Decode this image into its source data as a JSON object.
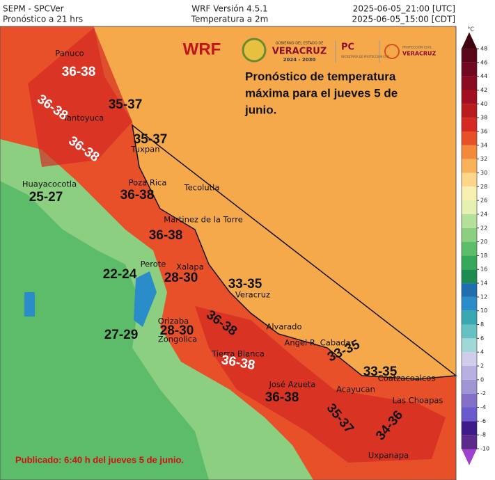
{
  "header": {
    "left": [
      "SEPM - SPCVer",
      "Pronóstico a 21 hrs"
    ],
    "center": [
      "WRF Versión 4.5.1",
      "Temperatura a 2m"
    ],
    "right": [
      "2025-06-05_21:00 [UTC]",
      "2025-06-05_15:00 [CDT]"
    ]
  },
  "model_label": "WRF",
  "logos": {
    "gov_small": "GOBIERNO DEL ESTADO DE",
    "gov_state": "VERACRUZ",
    "gov_years": "2024 - 2030",
    "pc": "PC",
    "pc_small": "SECRETARÍA DE PROTECCIÓN CIVIL",
    "pc2_small": "PROTECCIÓN CIVIL",
    "pc2_state": "VERACRUZ"
  },
  "forecast_text": [
    "Pronóstico de temperatura",
    "máxima para el jueves 5 de",
    "junio."
  ],
  "cities": [
    "Panuco",
    "Tantoyuca",
    "Tuxpan",
    "Huayacocotla",
    "Poza Rica",
    "Tecolutla",
    "Martinez de la Torre",
    "Perote",
    "Xalapa",
    "Veracruz",
    "Orizaba",
    "Zongolica",
    "Alvarado",
    "Angel R. Cabada",
    "Tierra Blanca",
    "José Azueta",
    "Acayucan",
    "Coatzacoalcos",
    "Las Choapas",
    "Uxpanapa"
  ],
  "ranges": [
    "36-38",
    "36-38",
    "35-37",
    "36-38",
    "35-37",
    "25-27",
    "36-38",
    "36-38",
    "22-24",
    "28-30",
    "33-35",
    "36-38",
    "27-29",
    "28-30",
    "36-38",
    "33-35",
    "33-35",
    "36-38",
    "35-37",
    "34-36"
  ],
  "published": "Publicado: 6:40 h del jueves 5 de junio.",
  "colorbar": {
    "unit": "°C",
    "ticks": [
      -10,
      -8,
      -6,
      -4,
      -2,
      0,
      2,
      4,
      6,
      8,
      10,
      12,
      14,
      16,
      18,
      20,
      22,
      24,
      26,
      28,
      30,
      32,
      34,
      36,
      38,
      40,
      42,
      44,
      46,
      48
    ],
    "colors": [
      "#a040d0",
      "#5b2a8c",
      "#3d1b8a",
      "#6a5acd",
      "#8470c8",
      "#9f94d4",
      "#b8b0e0",
      "#d0cdea",
      "#a0d8d8",
      "#66c2c2",
      "#3aa8b0",
      "#2a8cc8",
      "#1f6fb0",
      "#1e8c50",
      "#36a85a",
      "#5cbc6a",
      "#8ccf80",
      "#b4e09a",
      "#e6f0b0",
      "#f8f0b0",
      "#fcd68a",
      "#f9b25a",
      "#f38a3a",
      "#e8502a",
      "#d42a22",
      "#b81c1c",
      "#a01020",
      "#8a0a20",
      "#700820",
      "#5a0618",
      "#3f0410"
    ]
  }
}
